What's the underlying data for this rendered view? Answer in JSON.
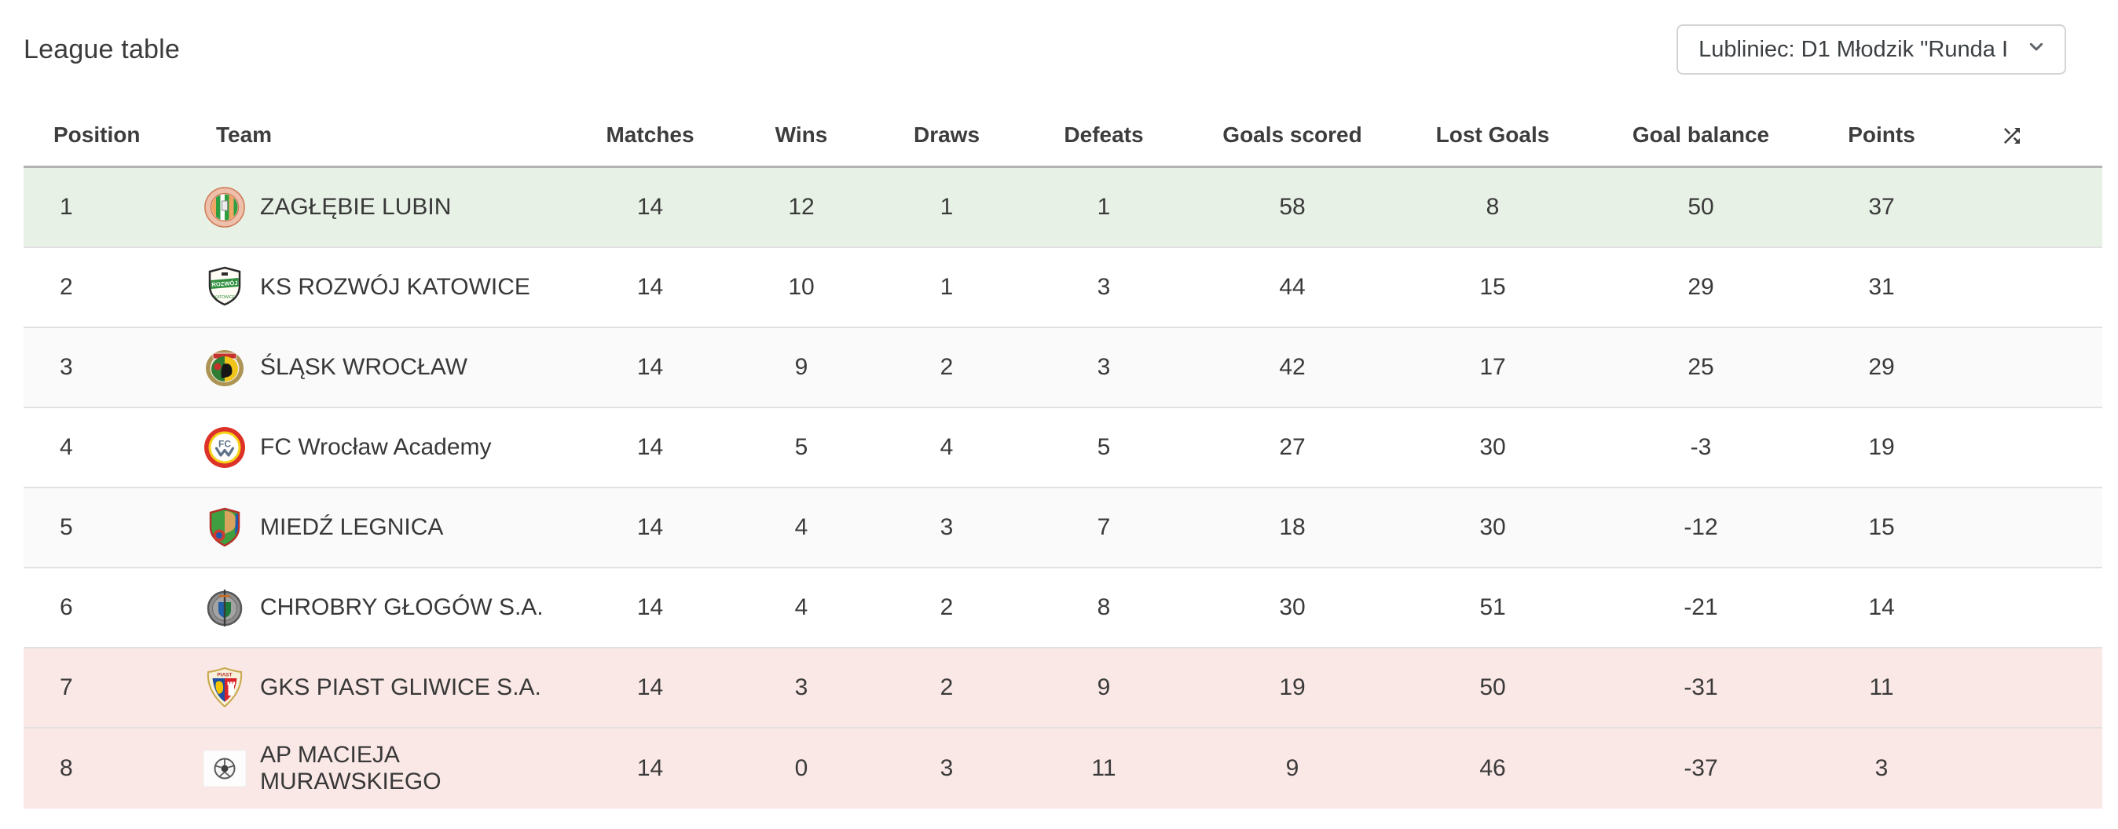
{
  "page_title": "League table",
  "filter": {
    "selected": "Lubliniec: D1 Młodzik \"Runda I",
    "chevron_icon": "chevron-down-icon"
  },
  "table": {
    "columns": [
      "Position",
      "Team",
      "Matches",
      "Wins",
      "Draws",
      "Defeats",
      "Goals scored",
      "Lost Goals",
      "Goal balance",
      "Points"
    ],
    "sort_icon": "shuffle-icon",
    "rows": [
      {
        "position": "1",
        "logo": "zaglebie-lubin-crest",
        "team": "ZAGŁĘBIE LUBIN",
        "matches": "14",
        "wins": "12",
        "draws": "1",
        "defeats": "1",
        "goals_scored": "58",
        "lost_goals": "8",
        "goal_balance": "50",
        "points": "37",
        "highlight": "promotion"
      },
      {
        "position": "2",
        "logo": "rozwoj-katowice-crest",
        "team": "KS ROZWÓJ KATOWICE",
        "matches": "14",
        "wins": "10",
        "draws": "1",
        "defeats": "3",
        "goals_scored": "44",
        "lost_goals": "15",
        "goal_balance": "29",
        "points": "31",
        "highlight": ""
      },
      {
        "position": "3",
        "logo": "slask-wroclaw-crest",
        "team": "ŚLĄSK WROCŁAW",
        "matches": "14",
        "wins": "9",
        "draws": "2",
        "defeats": "3",
        "goals_scored": "42",
        "lost_goals": "17",
        "goal_balance": "25",
        "points": "29",
        "highlight": ""
      },
      {
        "position": "4",
        "logo": "fc-wroclaw-academy-crest",
        "team": "FC Wrocław Academy",
        "matches": "14",
        "wins": "5",
        "draws": "4",
        "defeats": "5",
        "goals_scored": "27",
        "lost_goals": "30",
        "goal_balance": "-3",
        "points": "19",
        "highlight": ""
      },
      {
        "position": "5",
        "logo": "miedz-legnica-crest",
        "team": "MIEDŹ LEGNICA",
        "matches": "14",
        "wins": "4",
        "draws": "3",
        "defeats": "7",
        "goals_scored": "18",
        "lost_goals": "30",
        "goal_balance": "-12",
        "points": "15",
        "highlight": ""
      },
      {
        "position": "6",
        "logo": "chrobry-glogow-crest",
        "team": "CHROBRY GŁOGÓW S.A.",
        "matches": "14",
        "wins": "4",
        "draws": "2",
        "defeats": "8",
        "goals_scored": "30",
        "lost_goals": "51",
        "goal_balance": "-21",
        "points": "14",
        "highlight": ""
      },
      {
        "position": "7",
        "logo": "piast-gliwice-crest",
        "team": "GKS PIAST GLIWICE S.A.",
        "matches": "14",
        "wins": "3",
        "draws": "2",
        "defeats": "9",
        "goals_scored": "19",
        "lost_goals": "50",
        "goal_balance": "-31",
        "points": "11",
        "highlight": "relegation"
      },
      {
        "position": "8",
        "logo": "ap-macieja-murawskiego-crest",
        "team": "AP MACIEJA MURAWSKIEGO",
        "matches": "14",
        "wins": "0",
        "draws": "3",
        "defeats": "11",
        "goals_scored": "9",
        "lost_goals": "46",
        "goal_balance": "-37",
        "points": "3",
        "highlight": "relegation"
      }
    ]
  },
  "colors": {
    "promotion_row": "#e7f1e6",
    "relegation_row": "#fae8e6",
    "zebra_row": "#fafafa",
    "table_top_border": "#b3b3b3",
    "row_divider": "#e1e1e1",
    "header_text": "#3d3d3d",
    "body_text": "#3a3a3a"
  }
}
